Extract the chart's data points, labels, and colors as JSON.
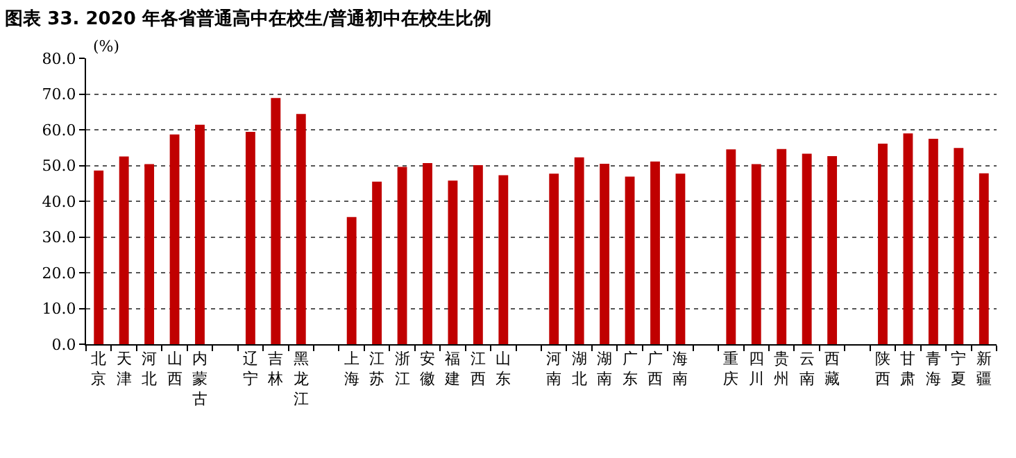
{
  "chart_data": {
    "type": "bar",
    "title": "图表 33. 2020 年各省普通高中在校生/普通初中在校生比例",
    "ylabel": "(%)",
    "categories": [
      "北京",
      "天津",
      "河北",
      "山西",
      "内蒙古",
      null,
      "辽宁",
      "吉林",
      "黑龙江",
      null,
      "上海",
      "江苏",
      "浙江",
      "安徽",
      "福建",
      "江西",
      "山东",
      null,
      "河南",
      "湖北",
      "湖南",
      "广东",
      "广西",
      "海南",
      null,
      "重庆",
      "四川",
      "贵州",
      "云南",
      "西藏",
      null,
      "陕西",
      "甘肃",
      "青海",
      "宁夏",
      "新疆"
    ],
    "values": [
      48.6,
      52.5,
      50.4,
      58.7,
      61.4,
      null,
      59.4,
      68.9,
      64.4,
      null,
      35.6,
      45.5,
      49.6,
      50.7,
      45.8,
      50.1,
      47.3,
      null,
      47.7,
      52.3,
      50.5,
      46.9,
      51.1,
      47.7,
      null,
      54.5,
      50.4,
      54.6,
      53.3,
      52.6,
      null,
      56.1,
      59.0,
      57.5,
      54.9,
      47.8
    ],
    "color": "#c00000",
    "ylim": [
      0,
      80
    ],
    "yticks": [
      {
        "value": 0,
        "label": "0.0"
      },
      {
        "value": 10,
        "label": "10.0"
      },
      {
        "value": 20,
        "label": "20.0"
      },
      {
        "value": 30,
        "label": "30.0"
      },
      {
        "value": 40,
        "label": "40.0"
      },
      {
        "value": 50,
        "label": "50.0"
      },
      {
        "value": 60,
        "label": "60.0"
      },
      {
        "value": 70,
        "label": "70.0"
      },
      {
        "value": 80,
        "label": "80.0"
      }
    ],
    "grid": "y"
  }
}
